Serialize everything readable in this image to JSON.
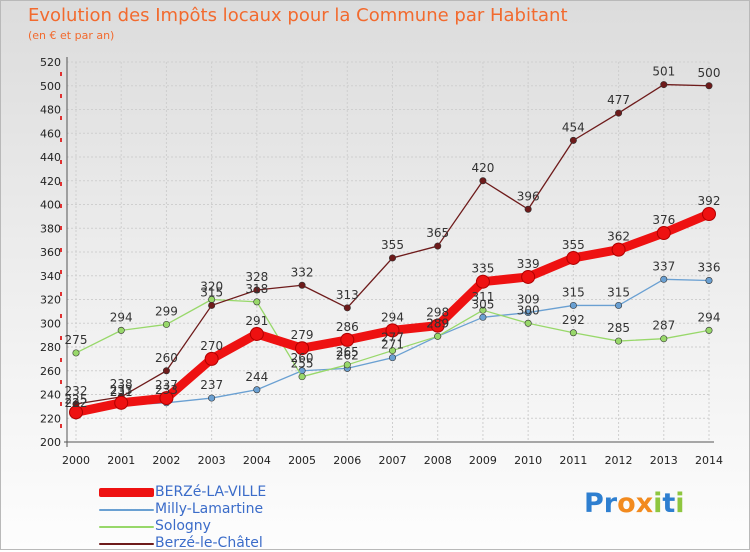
{
  "title": "Evolution des Impôts locaux pour la Commune par Habitant",
  "subtitle": "(en € et par an)",
  "logo": {
    "text": "Proxiti",
    "letters": [
      "P",
      "r",
      "o",
      "x",
      "i",
      "t",
      "i"
    ],
    "colors": [
      "#2e7fd0",
      "#2e7fd0",
      "#f28a1e",
      "#f28a1e",
      "#8ec63f",
      "#2e7fd0",
      "#8ec63f"
    ]
  },
  "chart_data": {
    "type": "line",
    "title": "Evolution des Impôts locaux pour la Commune par Habitant",
    "subtitle": "(en € et par an)",
    "x": [
      "2000",
      "2001",
      "2002",
      "2003",
      "2004",
      "2005",
      "2006",
      "2007",
      "2008",
      "2009",
      "2010",
      "2011",
      "2012",
      "2013",
      "2014"
    ],
    "ylim": [
      200,
      520
    ],
    "yticks": [
      200,
      220,
      240,
      260,
      280,
      300,
      320,
      340,
      360,
      380,
      400,
      420,
      440,
      460,
      480,
      500,
      520
    ],
    "grid": true,
    "series": [
      {
        "name": "BERZé-LA-VILLE",
        "color": "#ee1111",
        "width": 9,
        "values": [
          225,
          233,
          237,
          270,
          291,
          279,
          286,
          294,
          298,
          335,
          339,
          355,
          362,
          376,
          392
        ]
      },
      {
        "name": "Milly-Lamartine",
        "color": "#6aa0d2",
        "width": 1.3,
        "values": [
          222,
          231,
          233,
          237,
          244,
          260,
          262,
          271,
          289,
          305,
          309,
          315,
          315,
          337,
          336
        ]
      },
      {
        "name": "Sologny",
        "color": "#98d86a",
        "width": 1.3,
        "values": [
          275,
          294,
          299,
          320,
          318,
          255,
          265,
          277,
          289,
          311,
          300,
          292,
          285,
          287,
          294
        ]
      },
      {
        "name": "Berzé-le-Châtel",
        "color": "#6e1b1b",
        "width": 1.3,
        "values": [
          232,
          238,
          260,
          315,
          328,
          332,
          313,
          355,
          365,
          420,
          396,
          454,
          477,
          501,
          500
        ]
      }
    ],
    "labels": [
      {
        "series": 0,
        "values": [
          "225",
          "233",
          "237",
          "270",
          "291",
          "279",
          "286",
          "294",
          "298",
          "335",
          "339",
          "355",
          "362",
          "376",
          "392"
        ]
      },
      {
        "series": 1,
        "values": [
          "222",
          "231",
          "233",
          "237",
          "244",
          "260",
          "262",
          "271",
          "289",
          "305",
          "309",
          "315",
          "315",
          "337",
          "336"
        ]
      },
      {
        "series": 2,
        "values": [
          "275",
          "294",
          "299",
          "320",
          "318",
          "255",
          "265",
          "277",
          "289",
          "311",
          "300",
          "292",
          "285",
          "287",
          "294"
        ]
      },
      {
        "series": 3,
        "values": [
          "232",
          "238",
          "260",
          "315",
          "328",
          "332",
          "313",
          "355",
          "365",
          "420",
          "396",
          "454",
          "477",
          "501",
          "500"
        ]
      }
    ],
    "legend_position": "bottom-left"
  }
}
